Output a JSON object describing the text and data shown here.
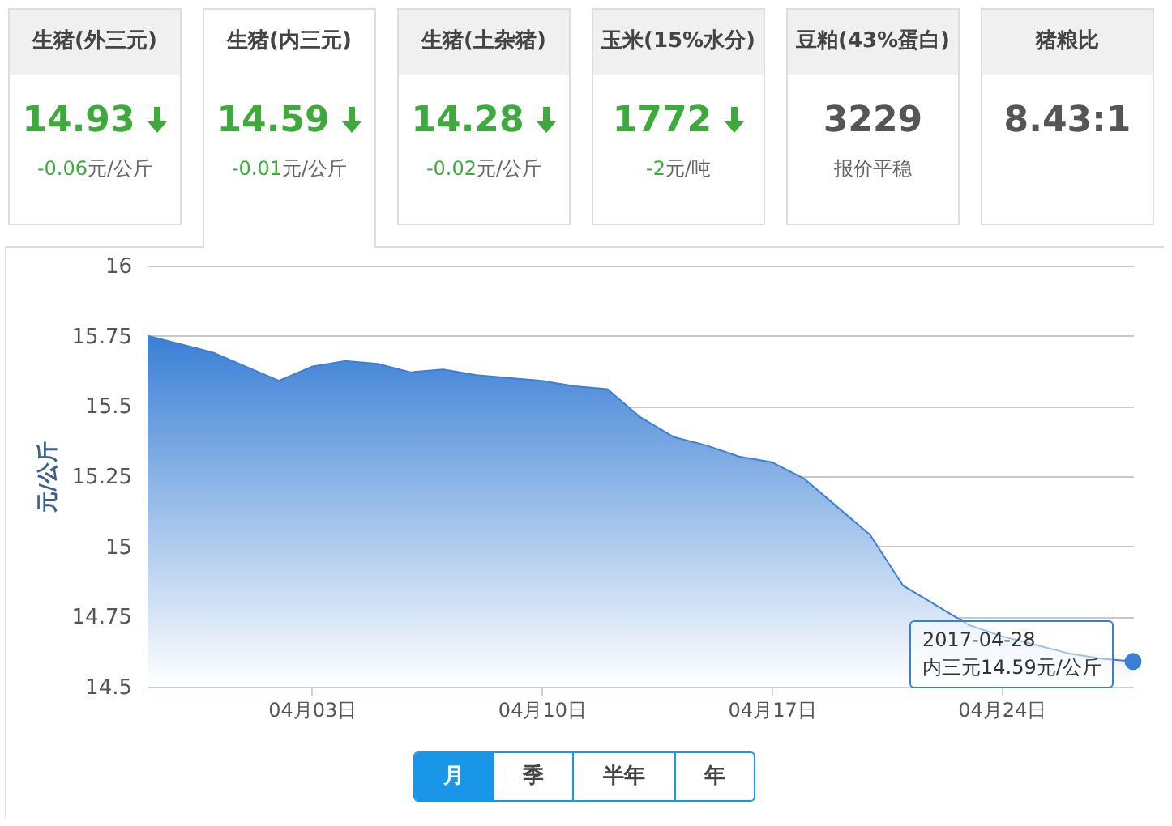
{
  "chart_data": [
    {
      "type": "other",
      "categories": [
        "生猪(外三元)",
        "生猪(内三元)",
        "生猪(土杂猪)",
        "玉米(15%水分)",
        "豆粕(43%蛋白)",
        "猪粮比"
      ],
      "values": [
        14.93,
        14.59,
        14.28,
        1772,
        3229,
        null
      ],
      "value_labels": [
        "14.93",
        "14.59",
        "14.28",
        "1772",
        "3229",
        "8.43:1"
      ],
      "annotations": [
        "-0.06元/公斤",
        "-0.01元/公斤",
        "-0.02元/公斤",
        "-2元/吨",
        "报价平稳"
      ]
    },
    {
      "type": "area",
      "ylabel": "元/公斤",
      "color": "#3a7fd5",
      "x": [
        "2017-03-29",
        "2017-03-30",
        "2017-03-31",
        "2017-04-01",
        "2017-04-02",
        "2017-04-03",
        "2017-04-04",
        "2017-04-05",
        "2017-04-06",
        "2017-04-07",
        "2017-04-08",
        "2017-04-09",
        "2017-04-10",
        "2017-04-11",
        "2017-04-12",
        "2017-04-13",
        "2017-04-14",
        "2017-04-15",
        "2017-04-16",
        "2017-04-17",
        "2017-04-18",
        "2017-04-19",
        "2017-04-20",
        "2017-04-21",
        "2017-04-22",
        "2017-04-23",
        "2017-04-24",
        "2017-04-25",
        "2017-04-26",
        "2017-04-27",
        "2017-04-28"
      ],
      "values": [
        15.75,
        15.72,
        15.69,
        15.64,
        15.59,
        15.64,
        15.66,
        15.65,
        15.62,
        15.63,
        15.61,
        15.6,
        15.59,
        15.57,
        15.56,
        15.46,
        15.39,
        15.36,
        15.32,
        15.3,
        15.24,
        15.14,
        15.04,
        14.86,
        14.79,
        14.72,
        14.68,
        14.65,
        14.62,
        14.6,
        14.59
      ],
      "xlim": [
        "2017-03-29",
        "2017-04-28"
      ],
      "xticks": [
        {
          "value": "2017-04-03",
          "label": "04月03日"
        },
        {
          "value": "2017-04-10",
          "label": "04月10日"
        },
        {
          "value": "2017-04-17",
          "label": "04月17日"
        },
        {
          "value": "2017-04-24",
          "label": "04月24日"
        }
      ],
      "ylim": [
        14.5,
        16
      ],
      "yticks": [
        14.5,
        14.75,
        15,
        15.25,
        15.5,
        15.75,
        16
      ],
      "grid": "y",
      "annotations": [
        {
          "text": "2017-04-28\n内三元14.59元/公斤",
          "x": "2017-04-28",
          "y": 14.59
        },
        "月",
        "季",
        "半年",
        "年"
      ]
    }
  ]
}
